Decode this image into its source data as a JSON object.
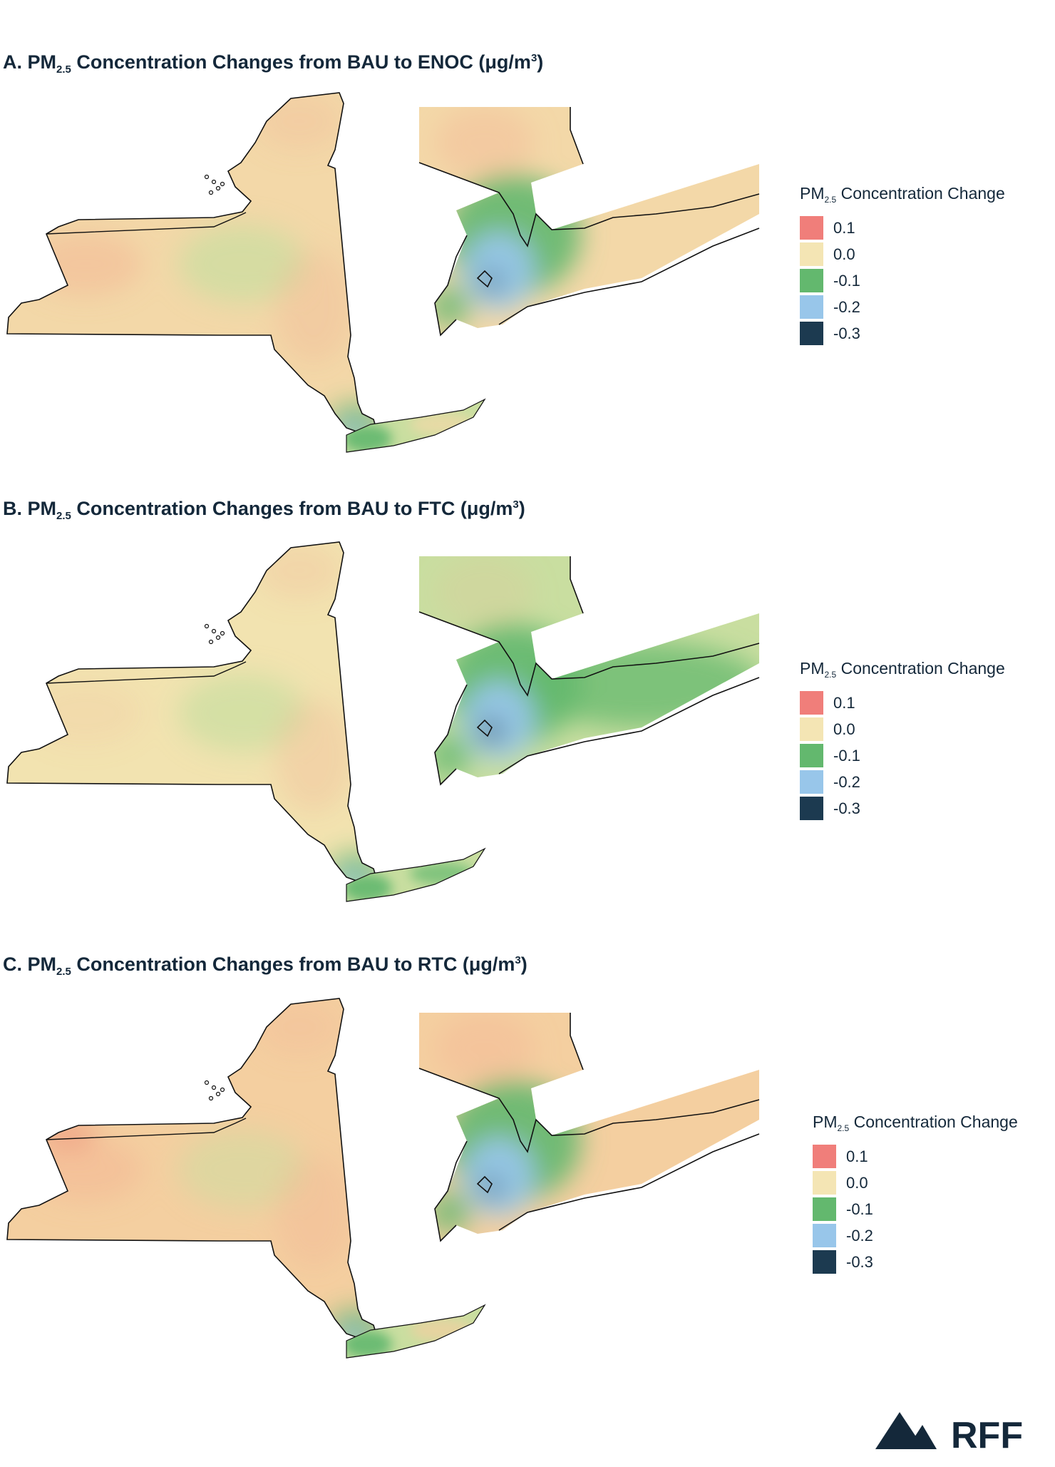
{
  "panels": [
    {
      "letter": "A.",
      "pm_base": "PM",
      "pm_sub": "2.5",
      "title_mid": "Concentration Changes from BAU to ENOC (μg/m",
      "title_sup": "3",
      "title_end": ")",
      "upstate_tint": "mixed",
      "nyc_intensity": "moderate"
    },
    {
      "letter": "B.",
      "pm_base": "PM",
      "pm_sub": "2.5",
      "title_mid": "Concentration Changes from BAU to FTC (μg/m",
      "title_sup": "3",
      "title_end": ")",
      "upstate_tint": "neutral",
      "nyc_intensity": "strong"
    },
    {
      "letter": "C.",
      "pm_base": "PM",
      "pm_sub": "2.5",
      "title_mid": "Concentration Changes from BAU to RTC (μg/m",
      "title_sup": "3",
      "title_end": ")",
      "upstate_tint": "warm",
      "nyc_intensity": "moderate"
    }
  ],
  "legend": {
    "title_base": "PM",
    "title_sub": "2.5",
    "title_rest": "Concentration Change",
    "items": [
      {
        "label": "0.1",
        "color": "#f07e7a"
      },
      {
        "label": "0.0",
        "color": "#f4e5b4"
      },
      {
        "label": "-0.1",
        "color": "#63b86e"
      },
      {
        "label": "-0.2",
        "color": "#98c6ea"
      },
      {
        "label": "-0.3",
        "color": "#1c3a50"
      }
    ]
  },
  "colors": {
    "neutral": "#f2e3b0",
    "warm": "#f4cfa0",
    "pink": "#f3b193",
    "light_green": "#c9dea0",
    "green": "#63b86e",
    "blue": "#98c6ea",
    "navy": "#1c3a50",
    "outline": "#111111",
    "brand": "#14283a"
  },
  "logo": {
    "text": "RFF",
    "icon": "mountain-icon"
  }
}
